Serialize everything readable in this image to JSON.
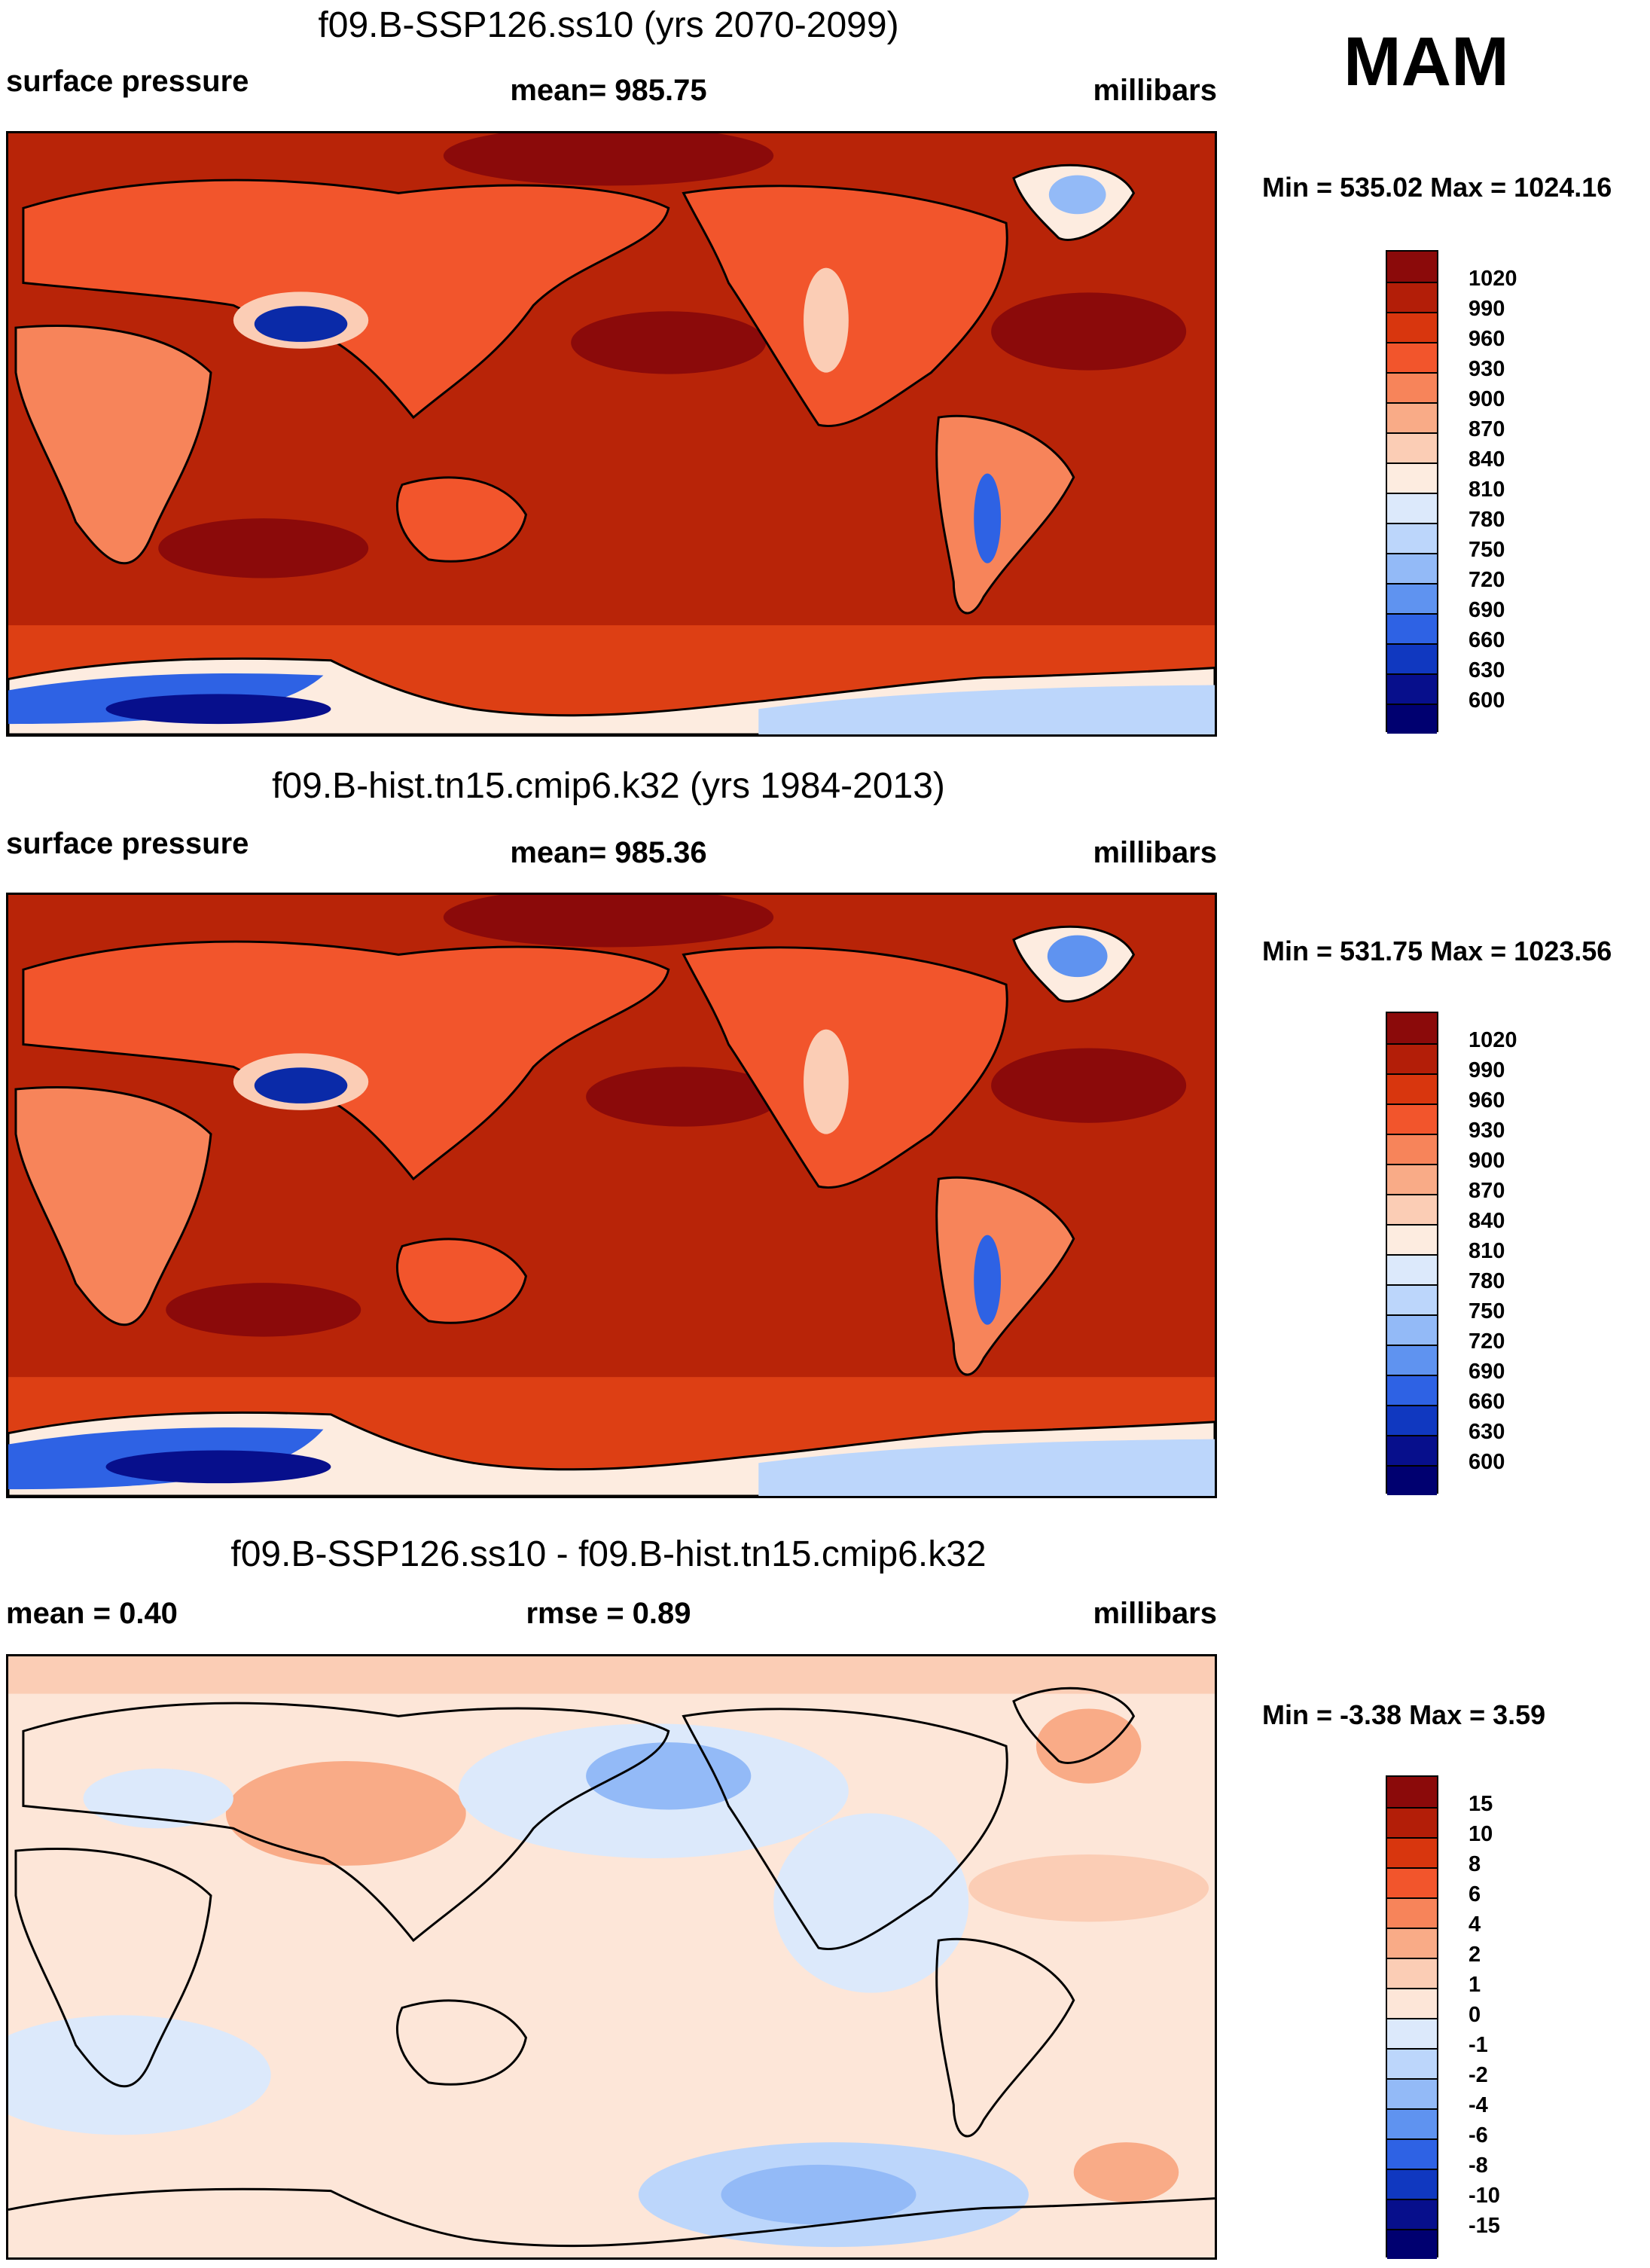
{
  "season": "MAM",
  "panels": [
    {
      "title": "f09.B-SSP126.ss10 (yrs 2070-2099)",
      "left_label": "surface pressure",
      "center_label": "mean= 985.75",
      "right_label": "millibars",
      "minmax": "Min = 535.02 Max = 1024.16",
      "colorbar_labels": [
        "1020",
        "990",
        "960",
        "930",
        "900",
        "870",
        "840",
        "810",
        "780",
        "750",
        "720",
        "690",
        "660",
        "630",
        "600"
      ]
    },
    {
      "title": "f09.B-hist.tn15.cmip6.k32 (yrs 1984-2013)",
      "left_label": "surface pressure",
      "center_label": "mean= 985.36",
      "right_label": "millibars",
      "minmax": "Min = 531.75 Max = 1023.56",
      "colorbar_labels": [
        "1020",
        "990",
        "960",
        "930",
        "900",
        "870",
        "840",
        "810",
        "780",
        "750",
        "720",
        "690",
        "660",
        "630",
        "600"
      ]
    },
    {
      "title": "f09.B-SSP126.ss10 - f09.B-hist.tn15.cmip6.k32",
      "left_label": "mean =   0.40",
      "center_label": "rmse =   0.89",
      "right_label": "millibars",
      "minmax": "Min =  -3.38 Max =   3.59",
      "colorbar_labels": [
        "15",
        "10",
        "8",
        "6",
        "4",
        "2",
        "1",
        "0",
        "-1",
        "-2",
        "-4",
        "-6",
        "-8",
        "-10",
        "-15"
      ]
    }
  ],
  "colors": {
    "pressure": [
      "#8b0a0a",
      "#b31e08",
      "#d8360e",
      "#f2552c",
      "#f7845a",
      "#f9ab87",
      "#fbcdb5",
      "#fdece0",
      "#dce9fb",
      "#bcd6fb",
      "#93baf7",
      "#5f93f0",
      "#2e62e4",
      "#1038c0",
      "#070f8c",
      "#000070"
    ],
    "diff": [
      "#8b0a0a",
      "#b31e08",
      "#d8360e",
      "#f2552c",
      "#f7845a",
      "#f9ab87",
      "#fbcdb5",
      "#fde6d8",
      "#dce9fb",
      "#bcd6fb",
      "#93baf7",
      "#5f93f0",
      "#2e62e4",
      "#1038c0",
      "#070f8c",
      "#000070"
    ]
  },
  "chart_data": [
    {
      "type": "heatmap",
      "title": "f09.B-SSP126.ss10 (yrs 2070-2099)",
      "variable": "surface pressure",
      "units": "millibars",
      "mean": 985.75,
      "min": 535.02,
      "max": 1024.16,
      "contour_levels": [
        600,
        630,
        660,
        690,
        720,
        750,
        780,
        810,
        840,
        870,
        900,
        930,
        960,
        990,
        1020
      ]
    },
    {
      "type": "heatmap",
      "title": "f09.B-hist.tn15.cmip6.k32 (yrs 1984-2013)",
      "variable": "surface pressure",
      "units": "millibars",
      "mean": 985.36,
      "min": 531.75,
      "max": 1023.56,
      "contour_levels": [
        600,
        630,
        660,
        690,
        720,
        750,
        780,
        810,
        840,
        870,
        900,
        930,
        960,
        990,
        1020
      ]
    },
    {
      "type": "heatmap",
      "title": "f09.B-SSP126.ss10 - f09.B-hist.tn15.cmip6.k32",
      "variable": "surface pressure difference",
      "units": "millibars",
      "mean": 0.4,
      "rmse": 0.89,
      "min": -3.38,
      "max": 3.59,
      "contour_levels": [
        -15,
        -10,
        -8,
        -6,
        -4,
        -2,
        -1,
        0,
        1,
        2,
        4,
        6,
        8,
        10,
        15
      ]
    }
  ]
}
